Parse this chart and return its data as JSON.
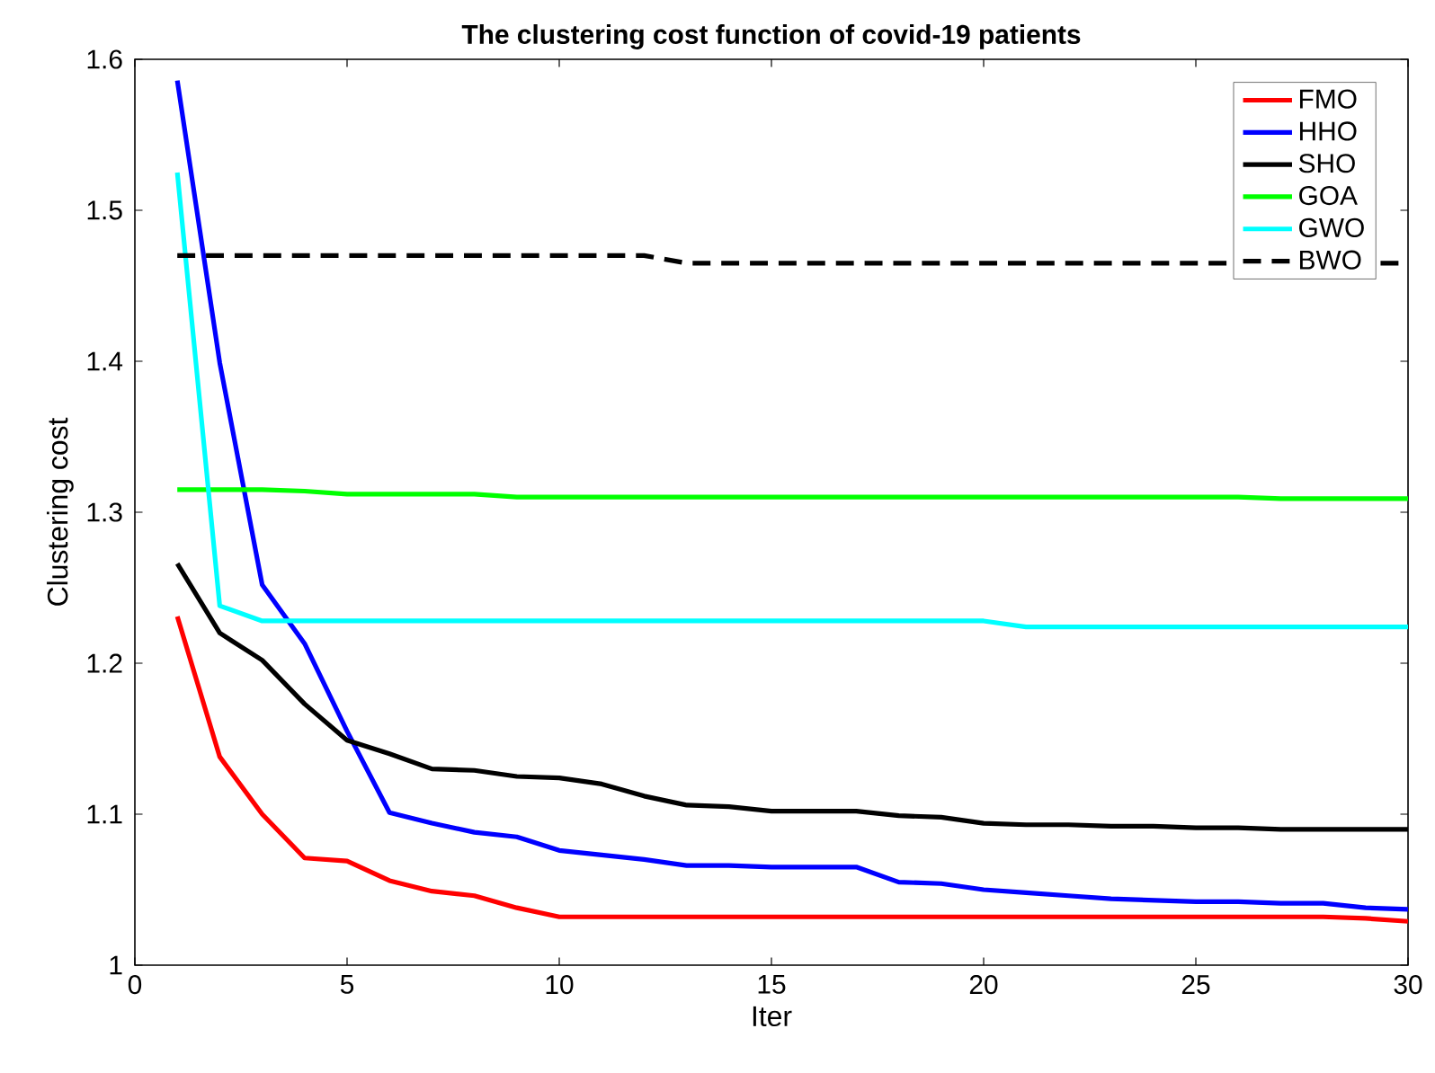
{
  "chart_data": {
    "type": "line",
    "title": "The clustering cost function of covid-19 patients",
    "xlabel": "Iter",
    "ylabel": "Clustering cost",
    "x": [
      1,
      2,
      3,
      4,
      5,
      6,
      7,
      8,
      9,
      10,
      11,
      12,
      13,
      14,
      15,
      16,
      17,
      18,
      19,
      20,
      21,
      22,
      23,
      24,
      25,
      26,
      27,
      28,
      29,
      30
    ],
    "series": [
      {
        "name": "FMO",
        "color": "#ff0000",
        "values": [
          1.231,
          1.138,
          1.1,
          1.071,
          1.069,
          1.056,
          1.049,
          1.046,
          1.038,
          1.032,
          1.032,
          1.032,
          1.032,
          1.032,
          1.032,
          1.032,
          1.032,
          1.032,
          1.032,
          1.032,
          1.032,
          1.032,
          1.032,
          1.032,
          1.032,
          1.032,
          1.032,
          1.032,
          1.031,
          1.029
        ]
      },
      {
        "name": "HHO",
        "color": "#0000ff",
        "values": [
          1.586,
          1.399,
          1.252,
          1.213,
          1.155,
          1.101,
          1.094,
          1.088,
          1.085,
          1.076,
          1.073,
          1.07,
          1.066,
          1.066,
          1.065,
          1.065,
          1.065,
          1.055,
          1.054,
          1.05,
          1.048,
          1.046,
          1.044,
          1.043,
          1.042,
          1.042,
          1.041,
          1.041,
          1.038,
          1.037
        ]
      },
      {
        "name": "SHO",
        "color": "#000000",
        "values": [
          1.266,
          1.22,
          1.202,
          1.173,
          1.149,
          1.14,
          1.13,
          1.129,
          1.125,
          1.124,
          1.12,
          1.112,
          1.106,
          1.105,
          1.102,
          1.102,
          1.102,
          1.099,
          1.098,
          1.094,
          1.093,
          1.093,
          1.092,
          1.092,
          1.091,
          1.091,
          1.09,
          1.09,
          1.09,
          1.09
        ]
      },
      {
        "name": "GOA",
        "color": "#00ff00",
        "values": [
          1.315,
          1.315,
          1.315,
          1.314,
          1.312,
          1.312,
          1.312,
          1.312,
          1.31,
          1.31,
          1.31,
          1.31,
          1.31,
          1.31,
          1.31,
          1.31,
          1.31,
          1.31,
          1.31,
          1.31,
          1.31,
          1.31,
          1.31,
          1.31,
          1.31,
          1.31,
          1.309,
          1.309,
          1.309,
          1.309
        ]
      },
      {
        "name": "GWO",
        "color": "#00ffff",
        "values": [
          1.525,
          1.238,
          1.228,
          1.228,
          1.228,
          1.228,
          1.228,
          1.228,
          1.228,
          1.228,
          1.228,
          1.228,
          1.228,
          1.228,
          1.228,
          1.228,
          1.228,
          1.228,
          1.228,
          1.228,
          1.224,
          1.224,
          1.224,
          1.224,
          1.224,
          1.224,
          1.224,
          1.224,
          1.224,
          1.224
        ]
      },
      {
        "name": "BWO",
        "color": "#000000",
        "line_style": "dashed",
        "values": [
          1.47,
          1.47,
          1.47,
          1.47,
          1.47,
          1.47,
          1.47,
          1.47,
          1.47,
          1.47,
          1.47,
          1.47,
          1.465,
          1.465,
          1.465,
          1.465,
          1.465,
          1.465,
          1.465,
          1.465,
          1.465,
          1.465,
          1.465,
          1.465,
          1.465,
          1.465,
          1.465,
          1.465,
          1.465,
          1.465
        ]
      }
    ],
    "xlim": [
      0,
      30
    ],
    "xticks": [
      0,
      5,
      10,
      15,
      20,
      25,
      30
    ],
    "ylim": [
      1,
      1.6
    ],
    "yticks": [
      1,
      1.1,
      1.2,
      1.3,
      1.4,
      1.5,
      1.6
    ],
    "legend": "top right",
    "grid": false,
    "marker": "none",
    "line_style": "solid"
  }
}
